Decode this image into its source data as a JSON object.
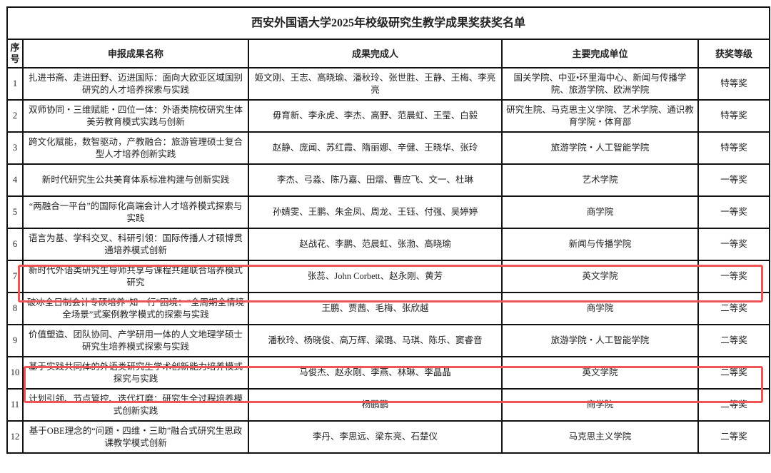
{
  "title": "西安外国语大学2025年校级研究生教学成果奖获奖名单",
  "headers": {
    "seq": "序号",
    "name": "申报成果名称",
    "people": "成果完成人",
    "unit": "主要完成单位",
    "level": "获奖等级"
  },
  "rows": [
    {
      "seq": "1",
      "name": "扎进书斋、走进田野、迈进国际：面向大欧亚区域国别研究的人才培养探索与实践",
      "people": "姬文刚、王志、高晓瑜、潘秋玲、张世胜、王静、王梅、李亮亮",
      "unit": "国关学院、中亚•环里海中心、新闻与传播学院、旅游学院、欧洲学院",
      "level": "特等奖"
    },
    {
      "seq": "2",
      "name": "双师协同・三维赋能・四位一体：外语类院校研究生体美劳教育模式实践与创新",
      "people": "毋育新、李永虎、李杰、高野、范晨虹、王莹、白毅",
      "unit": "研究生院、马克思主义学院、艺术学院、通识教育学院・体育部",
      "level": "特等奖"
    },
    {
      "seq": "3",
      "name": "跨文化赋能，数智驱动，产教融合：旅游管理硕士复合型人才培养创新实践",
      "people": "赵静、庞闻、苏红霞、隋丽娜、辛健、王晓华、张玲",
      "unit": "旅游学院・人工智能学院",
      "level": "特等奖"
    },
    {
      "seq": "4",
      "name": "新时代研究生公共美育体系标准构建与创新实践",
      "people": "李杰、弓淼、陈乃嘉、田熠、曹应飞、文一、杜琳",
      "unit": "艺术学院",
      "level": "一等奖"
    },
    {
      "seq": "5",
      "name": "“两融合一平台”的国际化高端会计人才培养模式探索与实践",
      "people": "孙婧雯、王鹏、朱金凤、周龙、王钰、付强、吴婷婷",
      "unit": "商学院",
      "level": "一等奖"
    },
    {
      "seq": "6",
      "name": "语言为基、学科交叉、科研引领：国际传播人才硕博贯通培养模式创新",
      "people": "赵战花、李鹏、范晨虹、张渤、高晓瑜",
      "unit": "新闻与传播学院",
      "level": "一等奖"
    },
    {
      "seq": "7",
      "name": "新时代外语类研究生导师共享与课程共建联合培养模式研究",
      "people": "张蕊、John Corbett、赵永刚、黄芳",
      "unit": "英文学院",
      "level": "一等奖"
    },
    {
      "seq": "8",
      "name": "破冰全日制会计专硕培养“知一行”困境：“全周期全情境全场景”式案例教学模式的探索与实践",
      "people": "王鹏、贾茜、毛梅、张欣越",
      "unit": "商学院",
      "level": "二等奖"
    },
    {
      "seq": "9",
      "name": "价值塑造、团队协同、产学研用一体的人文地理学硕士研究生培养模式探索与实践",
      "people": "潘秋玲、杨晓俊、高万辉、梁璐、马琪、陈乐、窦睿音",
      "unit": "旅游学院・人工智能学院",
      "level": "二等奖"
    },
    {
      "seq": "10",
      "name": "基于实践共同体的外语类研究生学术创新能力培养模式探究与实践",
      "people": "马俊杰、赵永刚、李燕、林琳、李晶晶",
      "unit": "英文学院",
      "level": "二等奖"
    },
    {
      "seq": "11",
      "name": "计划引领、节点管控、迭代打磨：研究生全过程培养模式创新实践",
      "people": "杨鹏鹏",
      "unit": "商学院",
      "level": "二等奖"
    },
    {
      "seq": "12",
      "name": "基于OBE理念的“问题・四维・三助”融合式研究生思政课教学模式创新",
      "people": "李丹、李思远、梁东亮、石楚仪",
      "unit": "马克思主义学院",
      "level": "二等奖"
    }
  ],
  "highlight_color": "#f05454",
  "highlighted_rows": [
    "7",
    "10"
  ]
}
